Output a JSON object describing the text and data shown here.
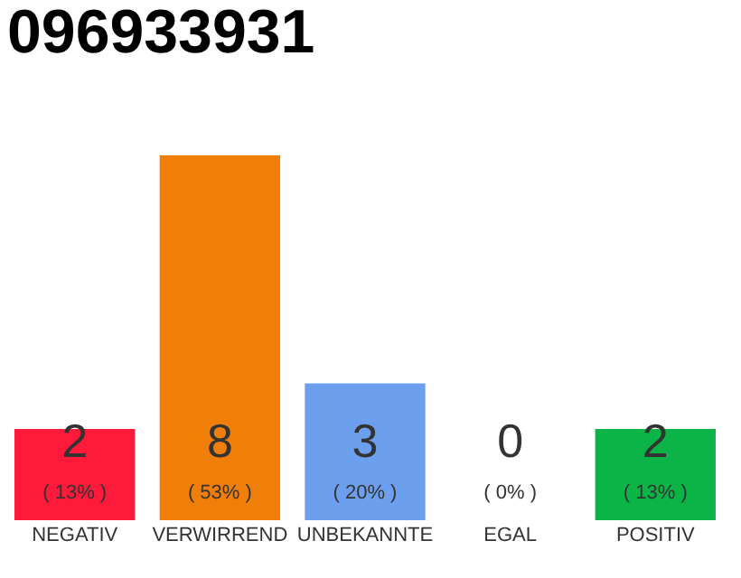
{
  "chart_data": {
    "type": "bar",
    "title": "096933931",
    "categories": [
      "NEGATIV",
      "VERWIRREND",
      "UNBEKANNTE",
      "EGAL",
      "POSITIV"
    ],
    "values": [
      2,
      8,
      3,
      0,
      2
    ],
    "colors": [
      "#ff1a3c",
      "#f07f09",
      "#6ca0ee",
      "#aaaaaa",
      "#0ab446"
    ],
    "grid": false,
    "tick_labels": "x",
    "data_labels": true,
    "annotations": [
      "( 13% )",
      "( 53% )",
      "( 20% )",
      "( 0% )",
      "( 13% )"
    ]
  }
}
